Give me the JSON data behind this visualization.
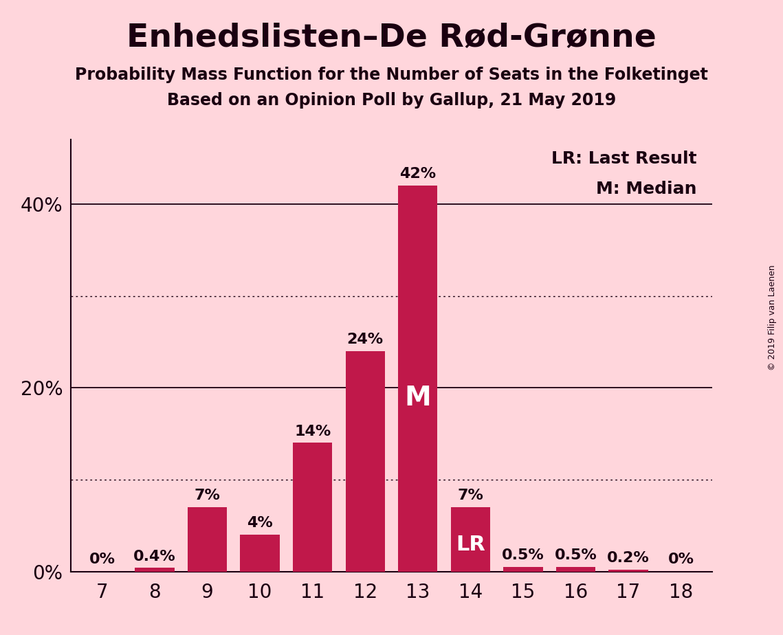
{
  "title": "Enhedslisten–De Rød-Grønne",
  "subtitle1": "Probability Mass Function for the Number of Seats in the Folketinget",
  "subtitle2": "Based on an Opinion Poll by Gallup, 21 May 2019",
  "copyright": "© 2019 Filip van Laenen",
  "seats": [
    7,
    8,
    9,
    10,
    11,
    12,
    13,
    14,
    15,
    16,
    17,
    18
  ],
  "probabilities": [
    0.0,
    0.4,
    7.0,
    4.0,
    14.0,
    24.0,
    42.0,
    7.0,
    0.5,
    0.5,
    0.2,
    0.0
  ],
  "bar_labels": [
    "0%",
    "0.4%",
    "7%",
    "4%",
    "14%",
    "24%",
    "42%",
    "7%",
    "0.5%",
    "0.5%",
    "0.2%",
    "0%"
  ],
  "bar_color": "#C0184A",
  "background_color": "#FFD6DC",
  "text_color": "#1A0010",
  "median_seat": 13,
  "lr_seat": 14,
  "legend_lr": "LR: Last Result",
  "legend_m": "M: Median",
  "yticks": [
    0,
    20,
    40
  ],
  "solid_lines": [
    20,
    40
  ],
  "dotted_lines": [
    10,
    30
  ],
  "ylim": [
    0,
    47
  ],
  "bar_width": 0.75,
  "title_fontsize": 34,
  "subtitle_fontsize": 17,
  "tick_fontsize": 20,
  "bar_label_fontsize": 16,
  "legend_fontsize": 18,
  "m_fontsize": 28,
  "lr_fontsize": 22,
  "copyright_fontsize": 9
}
